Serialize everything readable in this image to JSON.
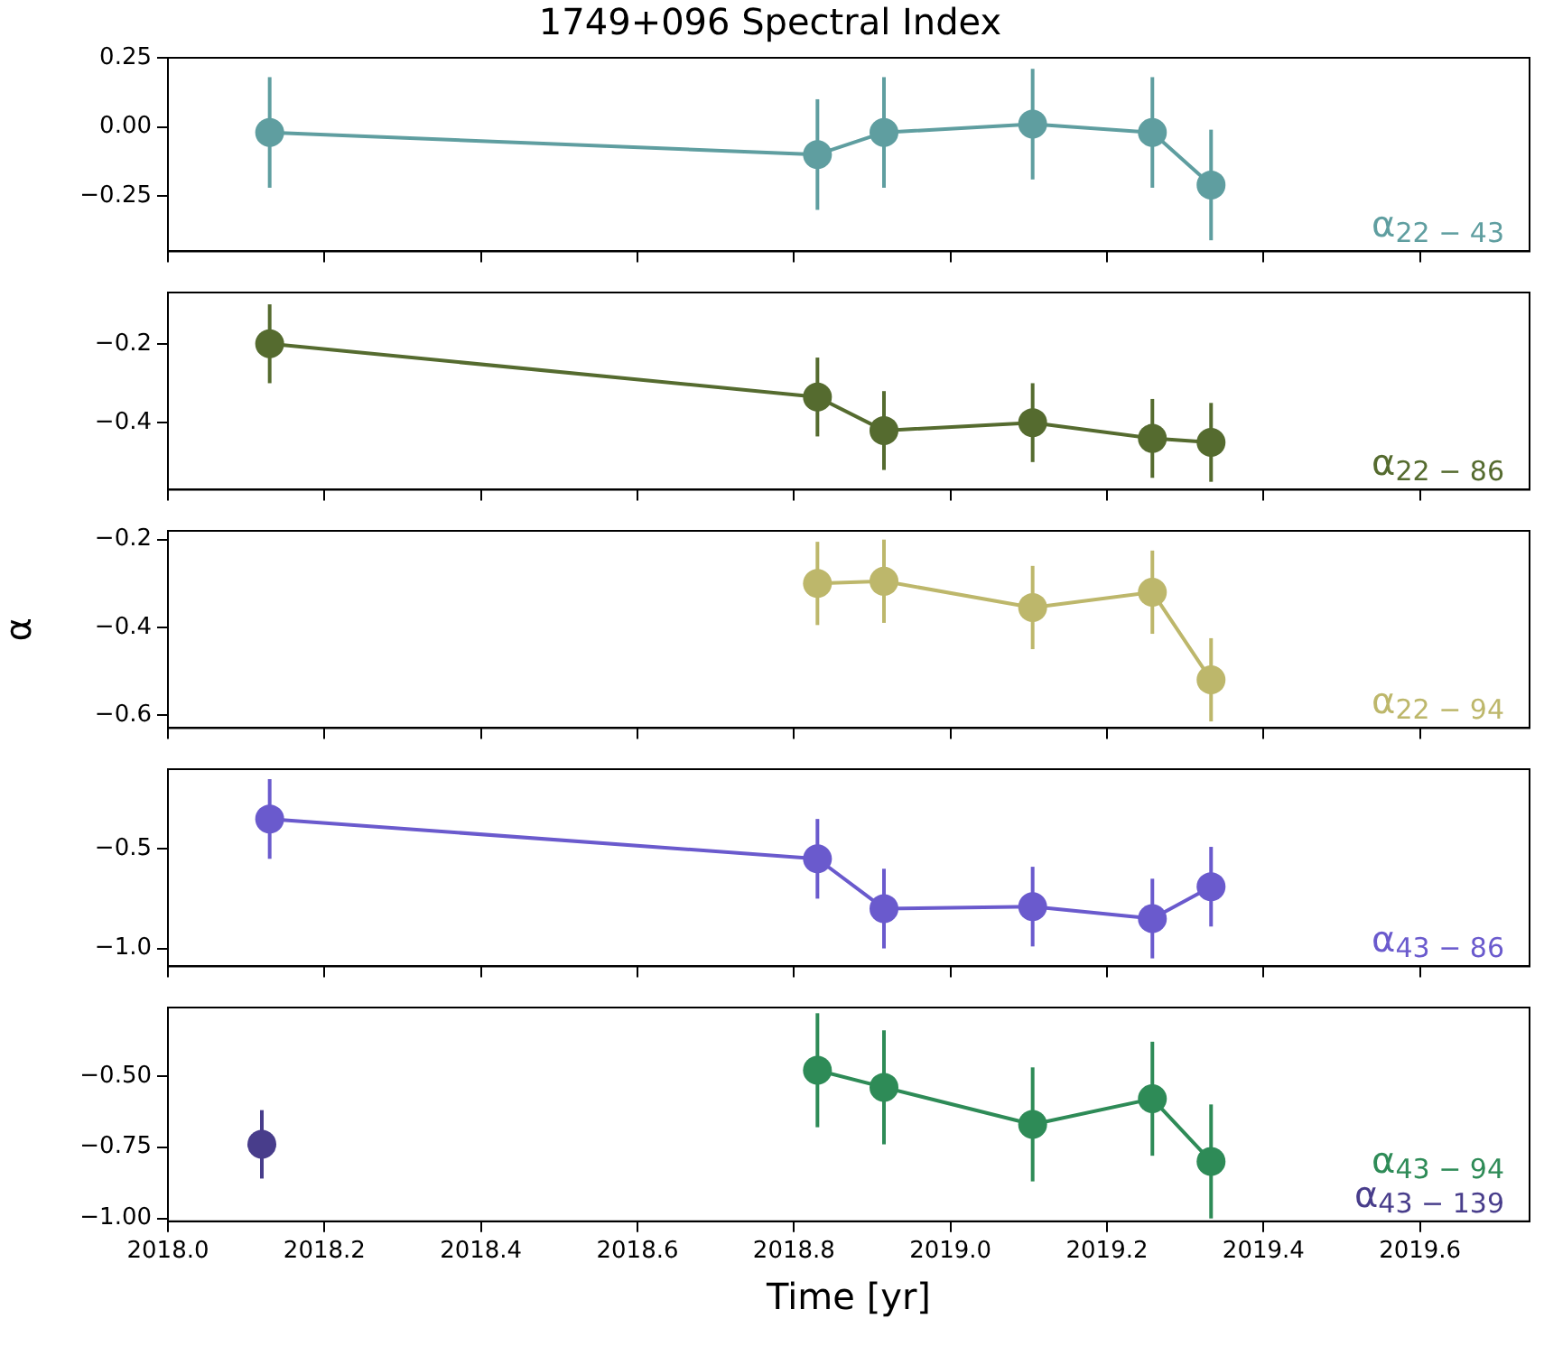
{
  "chart_data": [
    {
      "type": "line",
      "title": "1749+096 Spectral Index",
      "xlim": [
        2018.0,
        2019.74
      ],
      "xticks": [
        {
          "value": 2018.0,
          "label": null
        },
        {
          "value": 2018.2,
          "label": null
        },
        {
          "value": 2018.4,
          "label": null
        },
        {
          "value": 2018.6,
          "label": null
        },
        {
          "value": 2018.8,
          "label": null
        },
        {
          "value": 2019.0,
          "label": null
        },
        {
          "value": 2019.2,
          "label": null
        },
        {
          "value": 2019.4,
          "label": null
        },
        {
          "value": 2019.6,
          "label": null
        }
      ],
      "ylim": [
        -0.45,
        0.25
      ],
      "yticks": [
        {
          "value": 0.25,
          "label": "0.25"
        },
        {
          "value": 0,
          "label": "0.00"
        },
        {
          "value": -0.25,
          "label": "−0.25"
        }
      ],
      "tick_labels": "y",
      "marker": "circle",
      "grid": false,
      "series": [
        {
          "name": "α$_{22 − 43}$",
          "color": "#5f9ea0",
          "x": [
            2018.13,
            2018.83,
            2018.915,
            2019.105,
            2019.258,
            2019.333
          ],
          "values": [
            -0.02,
            -0.1,
            -0.02,
            0.01,
            -0.02,
            -0.21
          ],
          "errors": [
            0.2,
            0.2,
            0.2,
            0.2,
            0.2,
            0.2
          ]
        }
      ]
    },
    {
      "type": "line",
      "xlim": [
        2018.0,
        2019.74
      ],
      "xticks": [
        {
          "value": 2018.0,
          "label": null
        },
        {
          "value": 2018.2,
          "label": null
        },
        {
          "value": 2018.4,
          "label": null
        },
        {
          "value": 2018.6,
          "label": null
        },
        {
          "value": 2018.8,
          "label": null
        },
        {
          "value": 2019.0,
          "label": null
        },
        {
          "value": 2019.2,
          "label": null
        },
        {
          "value": 2019.4,
          "label": null
        },
        {
          "value": 2019.6,
          "label": null
        }
      ],
      "ylim": [
        -0.57,
        -0.07
      ],
      "yticks": [
        {
          "value": -0.2,
          "label": "−0.2"
        },
        {
          "value": -0.4,
          "label": "−0.4"
        }
      ],
      "tick_labels": "y",
      "marker": "circle",
      "grid": false,
      "series": [
        {
          "name": "α$_{22 − 86}$",
          "color": "#556b2f",
          "x": [
            2018.13,
            2018.83,
            2018.915,
            2019.105,
            2019.258,
            2019.333
          ],
          "values": [
            -0.2,
            -0.335,
            -0.42,
            -0.4,
            -0.44,
            -0.45
          ],
          "errors": [
            0.1,
            0.1,
            0.1,
            0.1,
            0.1,
            0.1
          ]
        }
      ]
    },
    {
      "type": "line",
      "ylabel": "α",
      "xlim": [
        2018.0,
        2019.74
      ],
      "xticks": [
        {
          "value": 2018.0,
          "label": null
        },
        {
          "value": 2018.2,
          "label": null
        },
        {
          "value": 2018.4,
          "label": null
        },
        {
          "value": 2018.6,
          "label": null
        },
        {
          "value": 2018.8,
          "label": null
        },
        {
          "value": 2019.0,
          "label": null
        },
        {
          "value": 2019.2,
          "label": null
        },
        {
          "value": 2019.4,
          "label": null
        },
        {
          "value": 2019.6,
          "label": null
        }
      ],
      "ylim": [
        -0.63,
        -0.18
      ],
      "yticks": [
        {
          "value": -0.2,
          "label": "−0.2"
        },
        {
          "value": -0.4,
          "label": "−0.4"
        },
        {
          "value": -0.6,
          "label": "−0.6"
        }
      ],
      "tick_labels": "y",
      "marker": "circle",
      "grid": false,
      "series": [
        {
          "name": "α$_{22 − 94}$",
          "color": "#bdb76b",
          "x": [
            2018.83,
            2018.915,
            2019.105,
            2019.258,
            2019.333
          ],
          "values": [
            -0.3,
            -0.295,
            -0.355,
            -0.32,
            -0.52
          ],
          "errors": [
            0.095,
            0.095,
            0.095,
            0.095,
            0.095
          ]
        }
      ]
    },
    {
      "type": "line",
      "xlim": [
        2018.0,
        2019.74
      ],
      "xticks": [
        {
          "value": 2018.0,
          "label": null
        },
        {
          "value": 2018.2,
          "label": null
        },
        {
          "value": 2018.4,
          "label": null
        },
        {
          "value": 2018.6,
          "label": null
        },
        {
          "value": 2018.8,
          "label": null
        },
        {
          "value": 2019.0,
          "label": null
        },
        {
          "value": 2019.2,
          "label": null
        },
        {
          "value": 2019.4,
          "label": null
        },
        {
          "value": 2019.6,
          "label": null
        }
      ],
      "ylim": [
        -1.09,
        -0.1
      ],
      "yticks": [
        {
          "value": -0.5,
          "label": "−0.5"
        },
        {
          "value": -1.0,
          "label": "−1.0"
        }
      ],
      "tick_labels": "y",
      "marker": "circle",
      "grid": false,
      "series": [
        {
          "name": "α$_{43 − 86}$",
          "color": "#6a5acd",
          "x": [
            2018.13,
            2018.83,
            2018.915,
            2019.105,
            2019.258,
            2019.333
          ],
          "values": [
            -0.35,
            -0.55,
            -0.8,
            -0.79,
            -0.85,
            -0.69
          ],
          "errors": [
            0.2,
            0.2,
            0.2,
            0.2,
            0.2,
            0.2
          ]
        }
      ]
    },
    {
      "type": "line",
      "xlabel": "Time [yr]",
      "xlim": [
        2018.0,
        2019.74
      ],
      "xticks": [
        {
          "value": 2018.0,
          "label": "2018.0"
        },
        {
          "value": 2018.2,
          "label": "2018.2"
        },
        {
          "value": 2018.4,
          "label": "2018.4"
        },
        {
          "value": 2018.6,
          "label": "2018.6"
        },
        {
          "value": 2018.8,
          "label": "2018.8"
        },
        {
          "value": 2019.0,
          "label": "2019.0"
        },
        {
          "value": 2019.2,
          "label": "2019.2"
        },
        {
          "value": 2019.4,
          "label": "2019.4"
        },
        {
          "value": 2019.6,
          "label": "2019.6"
        }
      ],
      "ylim": [
        -1.01,
        -0.26
      ],
      "yticks": [
        {
          "value": -0.5,
          "label": "−0.50"
        },
        {
          "value": -0.75,
          "label": "−0.75"
        },
        {
          "value": -1.0,
          "label": "−1.00"
        }
      ],
      "marker": "circle",
      "grid": false,
      "series": [
        {
          "name": "α$_{43 − 94}$",
          "color": "#2e8b57",
          "x": [
            2018.83,
            2018.915,
            2019.105,
            2019.258,
            2019.333
          ],
          "values": [
            -0.48,
            -0.54,
            -0.67,
            -0.58,
            -0.8
          ],
          "errors": [
            0.2,
            0.2,
            0.2,
            0.2,
            0.2
          ]
        },
        {
          "name": "α$_{43 − 139}$",
          "color": "#483d8b",
          "x": [
            2018.12
          ],
          "values": [
            -0.74
          ],
          "errors": [
            0.12
          ]
        }
      ]
    }
  ]
}
